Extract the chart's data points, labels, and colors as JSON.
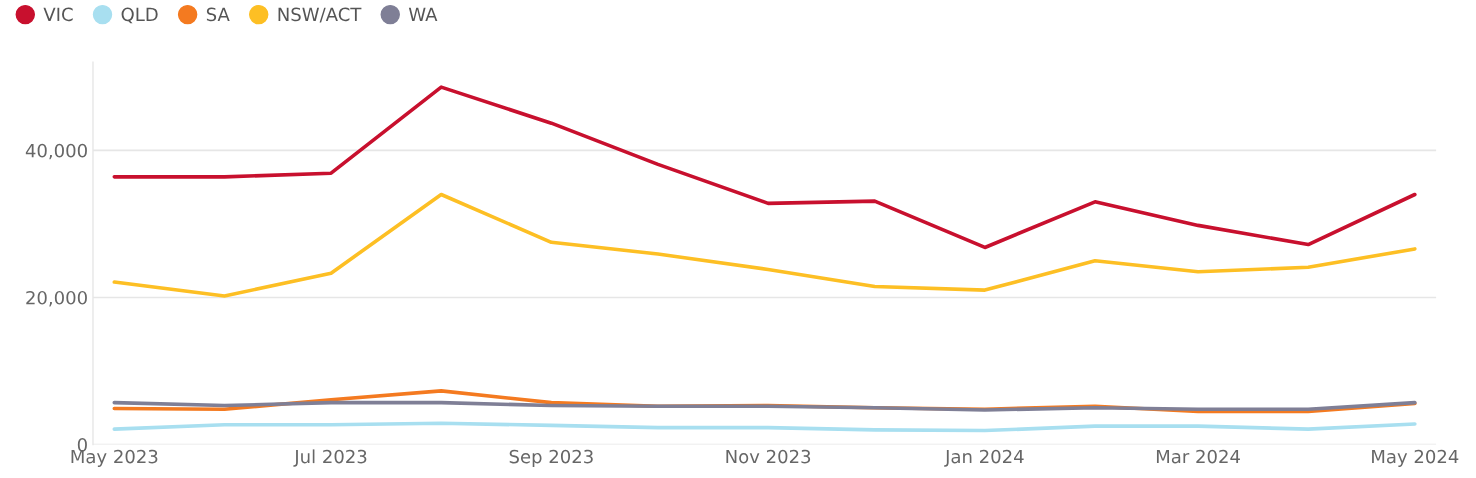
{
  "chart_data": {
    "type": "line",
    "x": [
      "2023-05",
      "2023-06",
      "2023-07",
      "2023-08",
      "2023-09",
      "2023-10",
      "2023-11",
      "2023-12",
      "2024-01",
      "2024-02",
      "2024-03",
      "2024-04",
      "2024-05"
    ],
    "series": [
      {
        "name": "VIC",
        "color": "#c8102e",
        "values": [
          36400,
          36400,
          36900,
          48600,
          43700,
          38100,
          32800,
          33100,
          26800,
          33000,
          29800,
          27200,
          34000
        ]
      },
      {
        "name": "QLD",
        "color": "#a8dff0",
        "values": [
          2100,
          2700,
          2700,
          2900,
          2600,
          2300,
          2300,
          2000,
          1900,
          2500,
          2500,
          2100,
          2800
        ]
      },
      {
        "name": "SA",
        "color": "#f47a20",
        "values": [
          4900,
          4800,
          6100,
          7300,
          5700,
          5200,
          5300,
          5000,
          4800,
          5200,
          4500,
          4500,
          5600
        ]
      },
      {
        "name": "NSW/ACT",
        "color": "#fdbf24",
        "values": [
          22100,
          20200,
          23300,
          34000,
          27500,
          25900,
          23800,
          21500,
          21000,
          25000,
          23500,
          24100,
          26600
        ]
      },
      {
        "name": "WA",
        "color": "#7f7f96",
        "values": [
          5700,
          5300,
          5700,
          5700,
          5300,
          5200,
          5200,
          5000,
          4700,
          5000,
          4800,
          4800,
          5700
        ]
      }
    ],
    "xlim": [
      "2023-04-25",
      "2024-05-07"
    ],
    "xticks": [
      {
        "value": "2023-05",
        "label": "May 2023"
      },
      {
        "value": "2023-07",
        "label": "Jul 2023"
      },
      {
        "value": "2023-09",
        "label": "Sep 2023"
      },
      {
        "value": "2023-11",
        "label": "Nov 2023"
      },
      {
        "value": "2024-01",
        "label": "Jan 2024"
      },
      {
        "value": "2024-03",
        "label": "Mar 2024"
      },
      {
        "value": "2024-05",
        "label": "May 2024"
      }
    ],
    "ylim": [
      0,
      52000
    ],
    "yticks": [
      {
        "value": 0,
        "label": "0"
      },
      {
        "value": 20000,
        "label": "20,000"
      },
      {
        "value": 40000,
        "label": "40,000"
      }
    ],
    "grid": "y",
    "legend": "top left",
    "marker": "none",
    "line_style": "solid"
  }
}
